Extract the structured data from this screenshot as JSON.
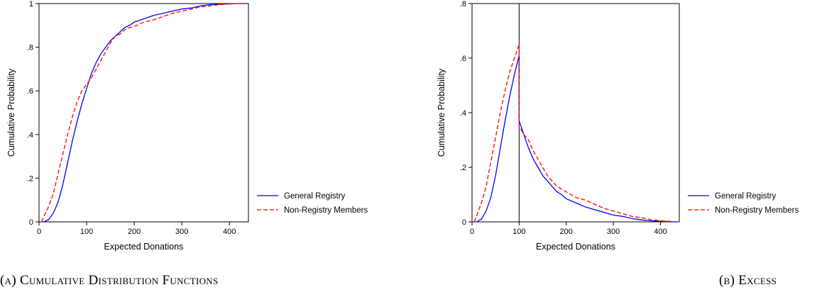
{
  "captions": {
    "a": "(a) Cumulative Distribution Functions",
    "b": "(b) Excess"
  },
  "chart_data": [
    {
      "type": "line",
      "xlabel": "Expected Donations",
      "ylabel": "Cumulative Probability",
      "xlim": [
        0,
        440
      ],
      "ylim": [
        0,
        1
      ],
      "xticks": [
        0,
        100,
        200,
        300,
        400
      ],
      "yticks": [
        0,
        0.2,
        0.4,
        0.6,
        0.8,
        1
      ],
      "ytick_labels": [
        "0",
        ".2",
        ".4",
        ".6",
        ".8",
        "1"
      ],
      "legend_position": "right",
      "grid": false,
      "series": [
        {
          "name": "General Registry",
          "color": "#0000ff",
          "dash": "solid",
          "x": [
            10,
            20,
            30,
            40,
            50,
            60,
            70,
            80,
            90,
            100,
            110,
            120,
            130,
            140,
            150,
            160,
            170,
            180,
            190,
            200,
            220,
            240,
            260,
            280,
            300,
            320,
            340,
            360,
            380,
            400,
            420,
            435
          ],
          "y": [
            0,
            0.01,
            0.04,
            0.09,
            0.17,
            0.27,
            0.37,
            0.46,
            0.54,
            0.61,
            0.68,
            0.73,
            0.77,
            0.8,
            0.83,
            0.85,
            0.87,
            0.89,
            0.9,
            0.915,
            0.93,
            0.945,
            0.955,
            0.965,
            0.975,
            0.98,
            0.99,
            0.995,
            0.997,
            0.999,
            1.0,
            1.0
          ]
        },
        {
          "name": "Non-Registry Members",
          "color": "#ff0000",
          "dash": "dashed",
          "x": [
            5,
            20,
            30,
            40,
            50,
            60,
            70,
            80,
            90,
            100,
            110,
            120,
            130,
            140,
            150,
            160,
            170,
            180,
            190,
            200,
            220,
            240,
            260,
            280,
            300,
            320,
            340,
            360,
            380,
            400,
            420,
            430
          ],
          "y": [
            0,
            0.07,
            0.13,
            0.22,
            0.31,
            0.4,
            0.48,
            0.55,
            0.6,
            0.63,
            0.66,
            0.7,
            0.74,
            0.78,
            0.82,
            0.85,
            0.86,
            0.88,
            0.89,
            0.895,
            0.915,
            0.925,
            0.94,
            0.955,
            0.965,
            0.975,
            0.985,
            0.99,
            0.995,
            0.998,
            1.0,
            1.0
          ]
        }
      ]
    },
    {
      "type": "line",
      "xlabel": "Expected Donations",
      "ylabel": "Cumulative Probability",
      "xlim": [
        0,
        440
      ],
      "ylim": [
        0,
        0.8
      ],
      "xticks": [
        0,
        100,
        200,
        300,
        400
      ],
      "yticks": [
        0,
        0.2,
        0.4,
        0.6,
        0.8
      ],
      "ytick_labels": [
        "0",
        ".2",
        ".4",
        ".6",
        ".8"
      ],
      "vline_x": 100,
      "legend_position": "right",
      "grid": false,
      "series": [
        {
          "name": "General Registry",
          "color": "#0000ff",
          "dash": "solid",
          "x": [
            10,
            20,
            30,
            40,
            50,
            60,
            70,
            80,
            90,
            100,
            100,
            110,
            120,
            130,
            140,
            150,
            160,
            170,
            180,
            190,
            200,
            220,
            240,
            260,
            280,
            300,
            320,
            340,
            360,
            380,
            400,
            420,
            435
          ],
          "y": [
            0,
            0.01,
            0.04,
            0.09,
            0.17,
            0.27,
            0.37,
            0.46,
            0.54,
            0.61,
            0.37,
            0.32,
            0.27,
            0.23,
            0.2,
            0.17,
            0.15,
            0.13,
            0.11,
            0.1,
            0.085,
            0.07,
            0.055,
            0.045,
            0.035,
            0.025,
            0.02,
            0.012,
            0.007,
            0.004,
            0.002,
            0.001,
            0
          ]
        },
        {
          "name": "Non-Registry Members",
          "color": "#ff0000",
          "dash": "dashed",
          "x": [
            5,
            20,
            30,
            40,
            50,
            60,
            70,
            80,
            90,
            100,
            100,
            110,
            120,
            130,
            140,
            150,
            160,
            170,
            180,
            190,
            200,
            220,
            240,
            260,
            280,
            300,
            320,
            340,
            360,
            380,
            400,
            420
          ],
          "y": [
            0,
            0.07,
            0.13,
            0.22,
            0.31,
            0.4,
            0.48,
            0.55,
            0.6,
            0.65,
            0.35,
            0.32,
            0.3,
            0.26,
            0.23,
            0.2,
            0.17,
            0.15,
            0.13,
            0.12,
            0.11,
            0.09,
            0.08,
            0.065,
            0.05,
            0.04,
            0.03,
            0.02,
            0.015,
            0.008,
            0.004,
            0.002
          ]
        }
      ]
    }
  ]
}
